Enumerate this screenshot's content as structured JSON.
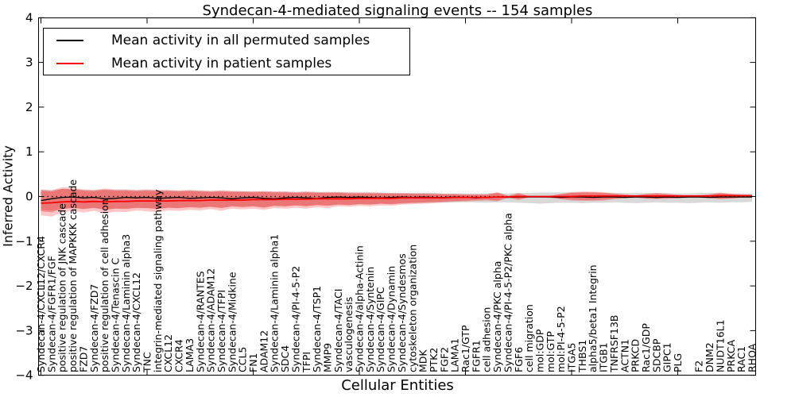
{
  "figure": {
    "title": "Syndecan-4-mediated signaling events -- 154 samples",
    "xlabel": "Cellular Entities",
    "ylabel": "Inferred Activity",
    "legend": {
      "entries": [
        {
          "label": "Mean activity in all permuted samples",
          "color": "#000000"
        },
        {
          "label": "Mean activity in patient samples",
          "color": "#ff0000"
        }
      ],
      "position": "upper left"
    }
  },
  "chart_data": {
    "type": "line",
    "title": "Syndecan-4-mediated signaling events -- 154 samples",
    "xlabel": "Cellular Entities",
    "ylabel": "Inferred Activity",
    "ylim": [
      -4,
      4
    ],
    "yticks": [
      4,
      3,
      2,
      1,
      0,
      -1,
      -2,
      -3,
      -4
    ],
    "xtick_every": 10,
    "grid": false,
    "zero_line": {
      "y": 0,
      "style": "dotted",
      "color": "#000000"
    },
    "legend_position": "upper left",
    "categories": [
      "Syndecan-4/CXCL12/CXCR4",
      "Syndecan-4/FGFR1/FGF",
      "positive regulation of JNK cascade",
      "positive regulation of MAPKKK cascade",
      "FZD7",
      "Syndecan-4/FZD7",
      "positive regulation of cell adhesion",
      "Syndecan-4/Tenascin C",
      "Syndecan-4/Laminin alpha3",
      "Syndecan-4/CXCL12",
      "TNC",
      "integrin-mediated signaling pathway",
      "CXCL12",
      "CXCR4",
      "LAMA3",
      "Syndecan-4/RANTES",
      "Syndecan-4/ADAM12",
      "Syndecan-4/TFPI",
      "Syndecan-4/Midkine",
      "CCL5",
      "FN1",
      "ADAM12",
      "Syndecan-4/Laminin alpha1",
      "SDC4",
      "Syndecan-4/PI-4-5-P2",
      "TFPI",
      "Syndecan-4/TSP1",
      "MMP9",
      "Syndecan-4/TACI",
      "vasculogenesis",
      "Syndecan-4/alpha-Actinin",
      "Syndecan-4/Syntenin",
      "Syndecan-4/GIPC",
      "Syndecan-4/Dynamin",
      "Syndecan-4/Syndesmos",
      "cytoskeleton organization",
      "MDK",
      "PTK2",
      "FGF2",
      "LAMA1",
      "Rac1/GTP",
      "FGFR1",
      "cell adhesion",
      "Syndecan-4/PKC alpha",
      "Syndecan-4/PI-4-5-P2/PKC alpha",
      "FGF6",
      "cell migration",
      "mol:GDP",
      "mol:GTP",
      "mol:PI-4-5-P2",
      "ITGA5",
      "THBS1",
      "alpha5/beta1 Integrin",
      "ITGB1",
      "TNFRSF13B",
      "ACTN1",
      "PRKCD",
      "Rac1/GDP",
      "SDCBP",
      "GIPC1",
      "PLG",
      "",
      "F2",
      "DNM2",
      "NUDT16L1",
      "PRKCA",
      "RAC1",
      "RHOA"
    ],
    "series": [
      {
        "name": "Mean activity in all permuted samples",
        "color": "#000000",
        "style": "solid",
        "width": 1.3,
        "values": [
          -0.09,
          -0.05,
          -0.02,
          -0.01,
          -0.03,
          -0.02,
          -0.05,
          -0.04,
          -0.02,
          -0.03,
          -0.02,
          -0.04,
          -0.03,
          -0.02,
          -0.04,
          -0.03,
          -0.02,
          -0.03,
          -0.05,
          -0.03,
          -0.02,
          -0.04,
          -0.05,
          -0.03,
          -0.02,
          -0.03,
          -0.04,
          -0.02,
          -0.01,
          -0.02,
          -0.01,
          -0.02,
          -0.03,
          -0.02,
          -0.01,
          -0.02,
          -0.01,
          -0.02,
          -0.02,
          -0.01,
          -0.02,
          -0.03,
          -0.02,
          -0.01,
          -0.02,
          -0.01,
          -0.01,
          -0.01,
          -0.01,
          -0.02,
          -0.01,
          -0.01,
          -0.02,
          -0.01,
          -0.01,
          -0.02,
          -0.01,
          -0.01,
          -0.02,
          -0.01,
          -0.02,
          -0.01,
          -0.01,
          -0.02,
          -0.01,
          -0.01,
          -0.01,
          -0.01
        ]
      },
      {
        "name": "Mean activity in patient samples",
        "color": "#ff0000",
        "style": "solid",
        "width": 1.8,
        "values": [
          -0.15,
          -0.14,
          -0.12,
          -0.11,
          -0.12,
          -0.11,
          -0.12,
          -0.11,
          -0.11,
          -0.1,
          -0.1,
          -0.1,
          -0.1,
          -0.09,
          -0.09,
          -0.09,
          -0.08,
          -0.08,
          -0.08,
          -0.08,
          -0.07,
          -0.07,
          -0.07,
          -0.06,
          -0.06,
          -0.06,
          -0.05,
          -0.05,
          -0.05,
          -0.05,
          -0.04,
          -0.04,
          -0.04,
          -0.04,
          -0.03,
          -0.03,
          -0.03,
          -0.03,
          -0.03,
          -0.02,
          -0.02,
          -0.02,
          -0.02,
          -0.01,
          -0.01,
          0.0,
          0.0,
          0.0,
          0.0,
          0.0,
          0.0,
          0.01,
          0.01,
          0.01,
          0.01,
          0.01,
          0.01,
          0.01,
          0.01,
          0.01,
          0.01,
          0.01,
          0.01,
          0.01,
          0.02,
          0.02,
          0.02,
          0.02
        ]
      }
    ],
    "bands": [
      {
        "name": "permuted-samples-range",
        "color": "rgba(128,128,128,0.30)",
        "upper": [
          0.15,
          0.14,
          0.17,
          0.17,
          0.15,
          0.14,
          0.16,
          0.15,
          0.15,
          0.14,
          0.15,
          0.14,
          0.14,
          0.13,
          0.14,
          0.13,
          0.12,
          0.13,
          0.12,
          0.12,
          0.11,
          0.12,
          0.11,
          0.11,
          0.1,
          0.11,
          0.1,
          0.1,
          0.1,
          0.09,
          0.09,
          0.09,
          0.09,
          0.08,
          0.08,
          0.08,
          0.08,
          0.08,
          0.07,
          0.07,
          0.07,
          0.07,
          0.07,
          0.08,
          0.07,
          0.08,
          0.08,
          0.09,
          0.09,
          0.09,
          0.09,
          0.09,
          0.09,
          0.08,
          0.08,
          0.08,
          0.08,
          0.08,
          0.08,
          0.08,
          0.07,
          0.07,
          0.08,
          0.08,
          0.08,
          0.07,
          0.07,
          0.07
        ],
        "lower": [
          -0.3,
          -0.31,
          -0.28,
          -0.26,
          -0.28,
          -0.26,
          -0.29,
          -0.27,
          -0.27,
          -0.26,
          -0.26,
          -0.27,
          -0.25,
          -0.26,
          -0.24,
          -0.25,
          -0.23,
          -0.25,
          -0.22,
          -0.23,
          -0.22,
          -0.24,
          -0.21,
          -0.22,
          -0.2,
          -0.21,
          -0.19,
          -0.2,
          -0.18,
          -0.19,
          -0.17,
          -0.18,
          -0.16,
          -0.17,
          -0.16,
          -0.15,
          -0.15,
          -0.14,
          -0.14,
          -0.13,
          -0.13,
          -0.13,
          -0.14,
          -0.13,
          -0.13,
          -0.14,
          -0.15,
          -0.16,
          -0.15,
          -0.14,
          -0.14,
          -0.15,
          -0.14,
          -0.14,
          -0.13,
          -0.14,
          -0.15,
          -0.14,
          -0.13,
          -0.14,
          -0.14,
          -0.15,
          -0.14,
          -0.13,
          -0.14,
          -0.13,
          -0.13,
          -0.12
        ]
      },
      {
        "name": "patient-samples-range-outer",
        "color": "rgba(255,0,0,0.22)",
        "upper": [
          0.16,
          0.14,
          0.21,
          0.19,
          0.16,
          0.15,
          0.18,
          0.16,
          0.16,
          0.15,
          0.16,
          0.15,
          0.15,
          0.14,
          0.15,
          0.14,
          0.13,
          0.14,
          0.13,
          0.12,
          0.12,
          0.12,
          0.11,
          0.11,
          0.1,
          0.11,
          0.1,
          0.1,
          0.1,
          0.09,
          0.09,
          0.09,
          0.08,
          0.08,
          0.08,
          0.07,
          0.07,
          0.07,
          0.06,
          0.06,
          0.05,
          0.05,
          0.05,
          0.1,
          0.02,
          0.08,
          0.01,
          0.01,
          0.02,
          0.06,
          0.1,
          0.11,
          0.11,
          0.1,
          0.07,
          0.05,
          0.03,
          0.06,
          0.08,
          0.06,
          0.04,
          0.03,
          0.03,
          0.05,
          0.09,
          0.06,
          0.04,
          0.03
        ],
        "lower": [
          -0.42,
          -0.45,
          -0.36,
          -0.32,
          -0.36,
          -0.32,
          -0.38,
          -0.34,
          -0.35,
          -0.31,
          -0.33,
          -0.35,
          -0.31,
          -0.32,
          -0.3,
          -0.31,
          -0.28,
          -0.32,
          -0.27,
          -0.29,
          -0.27,
          -0.3,
          -0.26,
          -0.27,
          -0.25,
          -0.27,
          -0.24,
          -0.26,
          -0.22,
          -0.23,
          -0.21,
          -0.22,
          -0.2,
          -0.21,
          -0.18,
          -0.17,
          -0.16,
          -0.15,
          -0.13,
          -0.12,
          -0.11,
          -0.1,
          -0.09,
          -0.11,
          -0.03,
          -0.08,
          -0.02,
          -0.02,
          -0.03,
          -0.06,
          -0.09,
          -0.1,
          -0.1,
          -0.09,
          -0.06,
          -0.04,
          -0.03,
          -0.05,
          -0.06,
          -0.05,
          -0.04,
          -0.03,
          -0.03,
          -0.04,
          -0.06,
          -0.05,
          -0.03,
          -0.03
        ]
      },
      {
        "name": "patient-samples-range-inner",
        "color": "rgba(255,0,0,0.30)",
        "upper": [
          0.13,
          0.11,
          0.17,
          0.16,
          0.13,
          0.12,
          0.15,
          0.13,
          0.13,
          0.12,
          0.13,
          0.12,
          0.12,
          0.11,
          0.12,
          0.11,
          0.1,
          0.11,
          0.1,
          0.1,
          0.09,
          0.1,
          0.09,
          0.09,
          0.08,
          0.09,
          0.08,
          0.08,
          0.08,
          0.07,
          0.07,
          0.07,
          0.07,
          0.06,
          0.06,
          0.06,
          0.06,
          0.05,
          0.05,
          0.05,
          0.04,
          0.04,
          0.04,
          0.08,
          0.01,
          0.06,
          0.01,
          0.01,
          0.01,
          0.05,
          0.08,
          0.09,
          0.09,
          0.08,
          0.06,
          0.04,
          0.02,
          0.05,
          0.06,
          0.05,
          0.03,
          0.02,
          0.02,
          0.04,
          0.07,
          0.05,
          0.03,
          0.02
        ],
        "lower": [
          -0.33,
          -0.35,
          -0.28,
          -0.25,
          -0.28,
          -0.25,
          -0.3,
          -0.27,
          -0.28,
          -0.25,
          -0.26,
          -0.28,
          -0.25,
          -0.26,
          -0.24,
          -0.25,
          -0.23,
          -0.26,
          -0.22,
          -0.24,
          -0.22,
          -0.25,
          -0.21,
          -0.22,
          -0.2,
          -0.22,
          -0.19,
          -0.21,
          -0.18,
          -0.19,
          -0.17,
          -0.18,
          -0.16,
          -0.17,
          -0.15,
          -0.14,
          -0.13,
          -0.12,
          -0.11,
          -0.1,
          -0.09,
          -0.08,
          -0.07,
          -0.09,
          -0.02,
          -0.06,
          -0.01,
          -0.01,
          -0.02,
          -0.05,
          -0.07,
          -0.08,
          -0.08,
          -0.07,
          -0.05,
          -0.03,
          -0.02,
          -0.04,
          -0.05,
          -0.04,
          -0.03,
          -0.02,
          -0.02,
          -0.03,
          -0.05,
          -0.04,
          -0.02,
          -0.02
        ]
      }
    ]
  }
}
